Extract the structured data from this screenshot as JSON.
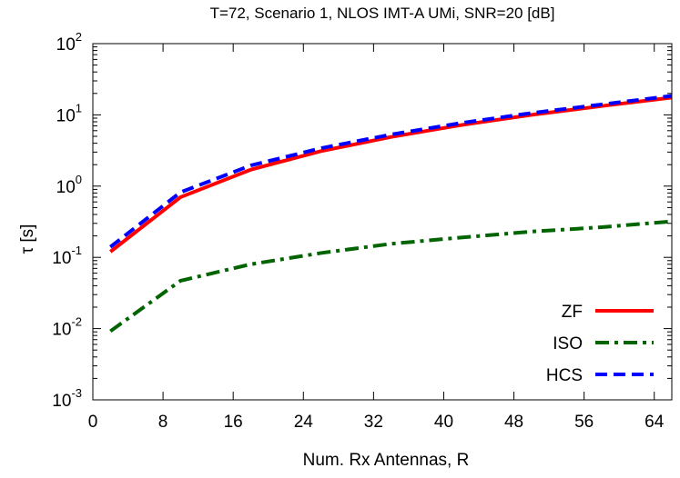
{
  "chart_data": {
    "type": "line",
    "title": "T=72, Scenario 1, NLOS IMT-A UMi, SNR=20 [dB]",
    "xlabel": "Num. Rx Antennas, R",
    "ylabel": "τ [s]",
    "xlim": [
      0,
      66
    ],
    "ylim": [
      0.001,
      100
    ],
    "yscale": "log",
    "xticks": [
      "0",
      "8",
      "16",
      "24",
      "32",
      "40",
      "48",
      "56",
      "64"
    ],
    "yticks": [
      {
        "base": "10",
        "exp": "-3"
      },
      {
        "base": "10",
        "exp": "-2"
      },
      {
        "base": "10",
        "exp": "-1"
      },
      {
        "base": "10",
        "exp": "0"
      },
      {
        "base": "10",
        "exp": "1"
      },
      {
        "base": "10",
        "exp": "2"
      }
    ],
    "legend_position": "bottom-right",
    "grid": false,
    "series": [
      {
        "name": "ZF",
        "color": "#ff0000",
        "dash": "solid",
        "x": [
          2,
          10,
          18,
          26,
          34,
          42,
          50,
          58,
          66
        ],
        "y": [
          0.12,
          0.7,
          1.7,
          3.1,
          4.9,
          7.2,
          10.0,
          13.3,
          17.5
        ]
      },
      {
        "name": "ISO",
        "color": "#006400",
        "dash": "dashdot",
        "x": [
          2,
          10,
          18,
          26,
          34,
          42,
          50,
          58,
          66
        ],
        "y": [
          0.0092,
          0.047,
          0.08,
          0.115,
          0.155,
          0.19,
          0.23,
          0.265,
          0.32
        ]
      },
      {
        "name": "HCS",
        "color": "#0000ff",
        "dash": "dashed",
        "x": [
          2,
          10,
          18,
          26,
          34,
          42,
          50,
          58,
          66
        ],
        "y": [
          0.14,
          0.82,
          1.95,
          3.4,
          5.3,
          7.7,
          10.6,
          14.0,
          18.5
        ]
      }
    ]
  }
}
